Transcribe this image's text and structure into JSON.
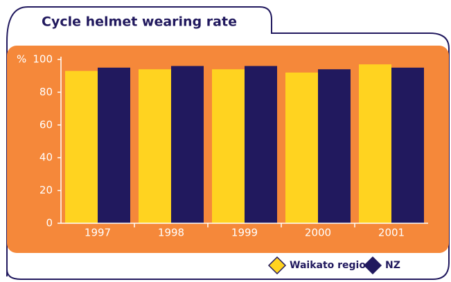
{
  "chart_data": {
    "type": "bar",
    "title": "Cycle helmet wearing rate",
    "y_label": "%",
    "categories": [
      "1997",
      "1998",
      "1999",
      "2000",
      "2001"
    ],
    "series": [
      {
        "name": "Waikato region",
        "color": "#ffd320",
        "values": [
          93,
          94,
          94,
          92,
          97
        ]
      },
      {
        "name": "NZ",
        "color": "#21195e",
        "values": [
          95,
          96,
          96,
          94,
          95
        ]
      }
    ],
    "ylim": [
      0,
      100
    ],
    "yticks": [
      0,
      20,
      40,
      60,
      80,
      100
    ],
    "legend": "bottom-right",
    "background": "#f5883a"
  }
}
